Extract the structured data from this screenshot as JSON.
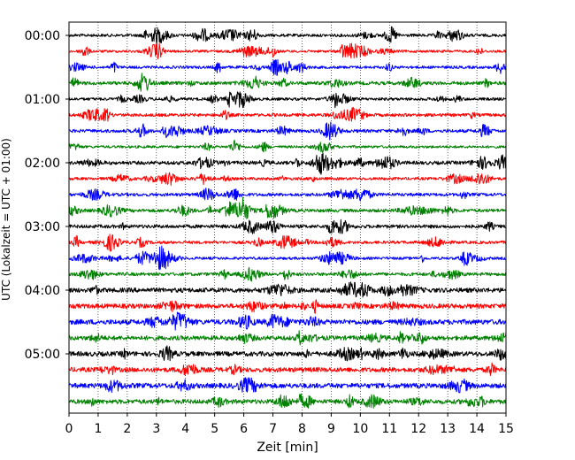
{
  "chart_data": {
    "type": "line",
    "title": "",
    "xlabel": "Zeit  [min]",
    "ylabel": "UTC (Lokalzeit = UTC + 01:00)",
    "xlim": [
      0,
      15
    ],
    "x_ticks": [
      "0",
      "1",
      "2",
      "3",
      "4",
      "5",
      "6",
      "7",
      "8",
      "9",
      "10",
      "11",
      "12",
      "13",
      "14",
      "15"
    ],
    "y_ticks": [
      "00:00",
      "01:00",
      "02:00",
      "03:00",
      "04:00",
      "05:00"
    ],
    "y_tick_traces": [
      0,
      4,
      8,
      12,
      16,
      20
    ],
    "trace_interval_min": 15,
    "trace_count": 24,
    "trace_colors": [
      "#000000",
      "#ff0000",
      "#0000ff",
      "#008000"
    ],
    "grid": "vertical dotted"
  }
}
